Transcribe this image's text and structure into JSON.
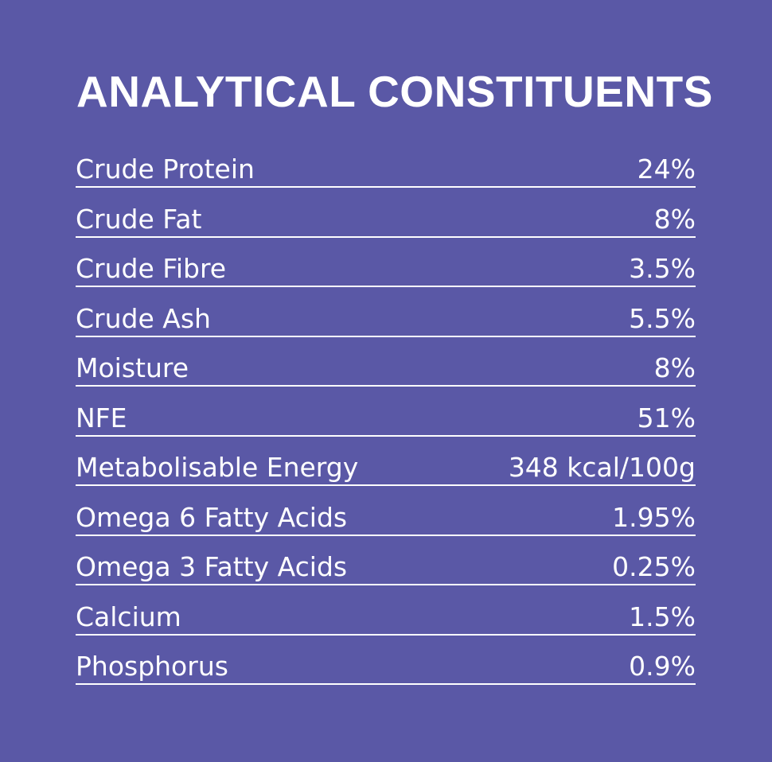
{
  "title": "ANALYTICAL CONSTITUENTS",
  "rows": [
    {
      "label": "Crude Protein",
      "value": "24%"
    },
    {
      "label": "Crude Fat",
      "value": "8%"
    },
    {
      "label": "Crude Fibre",
      "value": "3.5%"
    },
    {
      "label": "Crude Ash",
      "value": "5.5%"
    },
    {
      "label": "Moisture",
      "value": "8%"
    },
    {
      "label": "NFE",
      "value": "51%"
    },
    {
      "label": "Metabolisable Energy",
      "value": "348 kcal/100g"
    },
    {
      "label": "Omega 6 Fatty Acids",
      "value": "1.95%"
    },
    {
      "label": "Omega 3 Fatty Acids",
      "value": "0.25%"
    },
    {
      "label": "Calcium",
      "value": "1.5%"
    },
    {
      "label": "Phosphorus",
      "value": "0.9%"
    }
  ],
  "colors": {
    "background": "#5a58a6",
    "text": "#ffffff",
    "rule": "#ffffff"
  }
}
